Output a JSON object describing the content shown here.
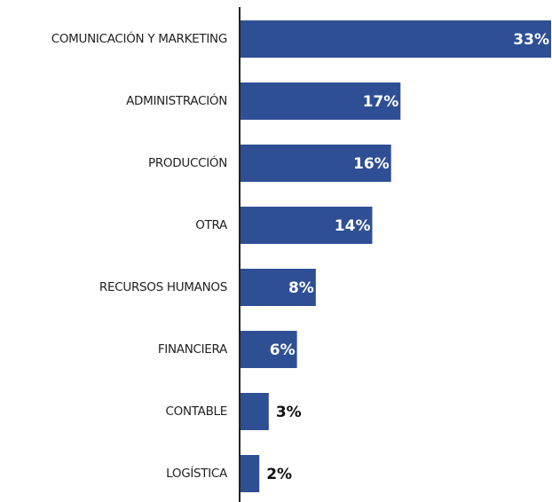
{
  "chart_data": {
    "type": "bar",
    "orientation": "horizontal",
    "categories": [
      "COMUNICACIÓN Y MARKETING",
      "ADMINISTRACIÓN",
      "PRODUCCIÓN",
      "OTRA",
      "RECURSOS HUMANOS",
      "FINANCIERA",
      "CONTABLE",
      "LOGÍSTICA"
    ],
    "values": [
      33,
      17,
      16,
      14,
      8,
      6,
      3,
      2
    ],
    "value_labels": [
      "33%",
      "17%",
      "16%",
      "14%",
      "8%",
      "6%",
      "3%",
      "2%"
    ],
    "color": "#2f4f95"
  }
}
